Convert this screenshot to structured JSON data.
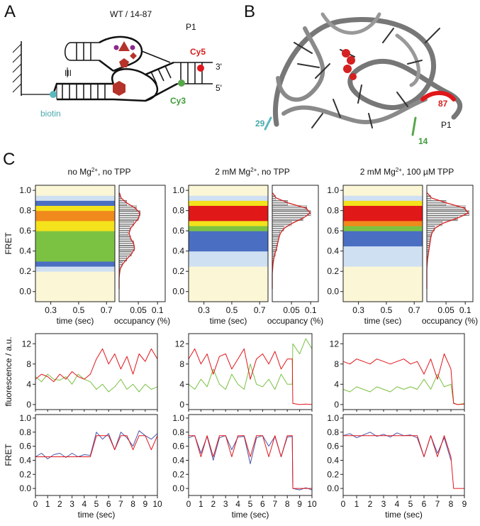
{
  "panel_labels": [
    "A",
    "B",
    "C"
  ],
  "diagram_a": {
    "title": "WT / 14-87",
    "p1": "P1",
    "cy5": "Cy5",
    "three_prime": "3'",
    "five_prime": "5'",
    "cy3": "Cy3",
    "biotin": "biotin",
    "tertiary": "III"
  },
  "structure_b": {
    "res87": "87",
    "res29": "29",
    "res14": "14",
    "p1": "P1"
  },
  "chart_data": [
    {
      "type": "heatmap",
      "title_parts": [
        {
          "text": "no Mg"
        },
        {
          "text": "2+",
          "superscript": true
        },
        {
          "text": ", no TPP"
        }
      ],
      "y_bins": [
        0,
        0.05,
        0.1,
        0.15,
        0.2,
        0.25,
        0.3,
        0.35,
        0.4,
        0.45,
        0.5,
        0.55,
        0.6,
        0.65,
        0.7,
        0.75,
        0.8,
        0.85,
        0.9,
        0.95,
        1.0
      ],
      "values": [
        0,
        0,
        0,
        0,
        0.1,
        0.25,
        0.45,
        0.55,
        0.5,
        0.45,
        0.5,
        0.55,
        0.6,
        0.65,
        0.75,
        0.85,
        0.7,
        0.3,
        0.1,
        0
      ],
      "colormap": [
        "#fbf6d6",
        "#cfe0f2",
        "#4a6fc2",
        "#7cc242",
        "#f4e21c",
        "#f08a1c",
        "#e01818"
      ],
      "xlim": [
        0.19,
        0.76
      ],
      "xticks": [
        0.3,
        0.5,
        0.7
      ],
      "ylim": [
        -0.1,
        1.05
      ],
      "yticks": [
        {
          "value": 0,
          "label": "0.0"
        },
        0.2,
        0.4,
        0.6,
        0.8,
        {
          "value": 1,
          "label": "1.0"
        }
      ],
      "xlabel": "time (sec)",
      "ylabel": "FRET"
    },
    {
      "type": "heatmap",
      "title_parts": [
        {
          "text": "2 mM Mg"
        },
        {
          "text": "2+",
          "superscript": true
        },
        {
          "text": ", no TPP"
        }
      ],
      "y_bins": [
        0,
        0.05,
        0.1,
        0.15,
        0.2,
        0.25,
        0.3,
        0.35,
        0.4,
        0.45,
        0.5,
        0.55,
        0.6,
        0.65,
        0.7,
        0.75,
        0.8,
        0.85,
        0.9,
        0.95,
        1.0
      ],
      "values": [
        0,
        0,
        0,
        0,
        0.05,
        0.1,
        0.15,
        0.2,
        0.25,
        0.25,
        0.3,
        0.35,
        0.45,
        0.7,
        1,
        1,
        0.95,
        0.6,
        0.15,
        0
      ],
      "colormap": [
        "#fbf6d6",
        "#cfe0f2",
        "#4a6fc2",
        "#7cc242",
        "#f4e21c",
        "#f08a1c",
        "#e01818"
      ],
      "xlim": [
        0.19,
        0.76
      ],
      "xticks": [
        0.3,
        0.5,
        0.7
      ],
      "ylim": [
        -0.1,
        1.05
      ],
      "yticks": [
        {
          "value": 0,
          "label": "0.0"
        },
        0.2,
        0.4,
        0.6,
        0.8,
        {
          "value": 1,
          "label": "1.0"
        }
      ],
      "xlabel": "time (sec)"
    },
    {
      "type": "heatmap",
      "title_parts": [
        {
          "text": "2 mM Mg"
        },
        {
          "text": "2+",
          "superscript": true
        },
        {
          "text": ", 100 µM TPP"
        }
      ],
      "y_bins": [
        0,
        0.05,
        0.1,
        0.15,
        0.2,
        0.25,
        0.3,
        0.35,
        0.4,
        0.45,
        0.5,
        0.55,
        0.6,
        0.65,
        0.7,
        0.75,
        0.8,
        0.85,
        0.9,
        0.95,
        1.0
      ],
      "values": [
        0,
        0,
        0,
        0,
        0.05,
        0.1,
        0.12,
        0.18,
        0.22,
        0.25,
        0.3,
        0.35,
        0.5,
        0.75,
        1,
        1,
        1,
        0.65,
        0.15,
        0
      ],
      "colormap": [
        "#fbf6d6",
        "#cfe0f2",
        "#4a6fc2",
        "#7cc242",
        "#f4e21c",
        "#f08a1c",
        "#e01818"
      ],
      "xlim": [
        0.19,
        0.76
      ],
      "xticks": [
        0.3,
        0.5,
        0.7
      ],
      "ylim": [
        -0.1,
        1.05
      ],
      "yticks": [
        {
          "value": 0,
          "label": "0.0"
        },
        0.2,
        0.4,
        0.6,
        0.8,
        {
          "value": 1,
          "label": "1.0"
        }
      ],
      "xlabel": "time (sec)"
    },
    {
      "type": "histogram",
      "orientation": "horizontal",
      "bins": [
        0,
        0.05,
        0.1,
        0.15,
        0.2,
        0.25,
        0.3,
        0.35,
        0.4,
        0.45,
        0.5,
        0.55,
        0.6,
        0.65,
        0.7,
        0.75,
        0.8,
        0.85,
        0.9,
        0.95,
        1.0
      ],
      "values": [
        0,
        0,
        0,
        0,
        0.002,
        0.008,
        0.02,
        0.032,
        0.04,
        0.038,
        0.03,
        0.024,
        0.028,
        0.038,
        0.05,
        0.055,
        0.045,
        0.02,
        0.004,
        0
      ],
      "fit": [
        0,
        0,
        0,
        0.001,
        0.003,
        0.01,
        0.021,
        0.033,
        0.04,
        0.038,
        0.03,
        0.026,
        0.03,
        0.04,
        0.051,
        0.054,
        0.042,
        0.02,
        0.005,
        0.001
      ],
      "color": "#888888",
      "fit_color": "#d42020",
      "xlim": [
        0,
        0.12
      ],
      "xticks": [
        0.05,
        0.1
      ],
      "ylim": [
        -0.1,
        1.05
      ],
      "xlabel": "occupancy (%)"
    },
    {
      "type": "histogram",
      "orientation": "horizontal",
      "bins": [
        0,
        0.05,
        0.1,
        0.15,
        0.2,
        0.25,
        0.3,
        0.35,
        0.4,
        0.45,
        0.5,
        0.55,
        0.6,
        0.65,
        0.7,
        0.75,
        0.8,
        0.85,
        0.9,
        0.95,
        1.0
      ],
      "values": [
        0,
        0,
        0,
        0,
        0,
        0.001,
        0.004,
        0.008,
        0.012,
        0.014,
        0.016,
        0.02,
        0.03,
        0.05,
        0.08,
        0.1,
        0.09,
        0.04,
        0.008,
        0
      ],
      "fit": [
        0,
        0,
        0,
        0,
        0.001,
        0.002,
        0.004,
        0.007,
        0.011,
        0.014,
        0.017,
        0.021,
        0.031,
        0.052,
        0.08,
        0.099,
        0.088,
        0.042,
        0.01,
        0.001
      ],
      "color": "#888888",
      "fit_color": "#d42020",
      "xlim": [
        0,
        0.12
      ],
      "xticks": [
        0.05,
        0.1
      ],
      "ylim": [
        -0.1,
        1.05
      ],
      "xlabel": "occupancy (%)"
    },
    {
      "type": "histogram",
      "orientation": "horizontal",
      "bins": [
        0,
        0.05,
        0.1,
        0.15,
        0.2,
        0.25,
        0.3,
        0.35,
        0.4,
        0.45,
        0.5,
        0.55,
        0.6,
        0.65,
        0.7,
        0.75,
        0.8,
        0.85,
        0.9,
        0.95,
        1.0
      ],
      "values": [
        0,
        0,
        0,
        0,
        0,
        0,
        0.002,
        0.004,
        0.006,
        0.008,
        0.01,
        0.012,
        0.02,
        0.04,
        0.08,
        0.11,
        0.1,
        0.05,
        0.01,
        0
      ],
      "fit": [
        0,
        0,
        0,
        0,
        0,
        0.001,
        0.002,
        0.004,
        0.006,
        0.008,
        0.01,
        0.013,
        0.021,
        0.042,
        0.079,
        0.108,
        0.098,
        0.052,
        0.012,
        0.001
      ],
      "color": "#888888",
      "fit_color": "#d42020",
      "xlim": [
        0,
        0.12
      ],
      "xticks": [
        0.05,
        0.1
      ],
      "ylim": [
        -0.1,
        1.05
      ],
      "xlabel": "occupancy (%)"
    },
    {
      "type": "line",
      "ylabel": "fluorescence / a.u.",
      "x": [
        0,
        0.5,
        1,
        1.5,
        2,
        2.5,
        3,
        3.5,
        4,
        4.5,
        5,
        5.5,
        6,
        6.5,
        7,
        7.5,
        8,
        8.5,
        9,
        9.5,
        10
      ],
      "series": [
        {
          "color": "#7ac143",
          "values": [
            5.5,
            4.5,
            6,
            5,
            4.8,
            5.5,
            4,
            6,
            5,
            4.5,
            3,
            4,
            2.5,
            3.5,
            5,
            3,
            4,
            2.5,
            4,
            3,
            3.5
          ]
        },
        {
          "color": "#e0161b",
          "values": [
            5,
            6,
            5.5,
            4.5,
            6,
            5,
            6.5,
            5.5,
            5,
            6,
            9,
            11,
            8,
            10,
            7,
            9.5,
            6,
            10,
            8.5,
            11,
            9
          ]
        }
      ],
      "xlim": [
        0,
        10
      ],
      "xticks": [
        0,
        1,
        2,
        3,
        4,
        5,
        6,
        7,
        8,
        9,
        10
      ],
      "ylim": [
        -1,
        14
      ],
      "yticks": [
        0,
        4,
        8,
        12
      ]
    },
    {
      "type": "line",
      "x": [
        0,
        0.5,
        1,
        1.5,
        2,
        2.5,
        3,
        3.5,
        4,
        4.5,
        5,
        5.5,
        6,
        6.5,
        7,
        7.5,
        8,
        8.4,
        8.45,
        9,
        9.5,
        10
      ],
      "series": [
        {
          "color": "#7ac143",
          "values": [
            4,
            3,
            5,
            3.5,
            7,
            4,
            3,
            6,
            4,
            3,
            8,
            4,
            3.5,
            5,
            3,
            6,
            4,
            4,
            12,
            10,
            13,
            11
          ]
        },
        {
          "color": "#e0161b",
          "values": [
            9,
            11,
            8,
            10,
            6,
            9.5,
            10,
            7,
            9,
            11,
            5,
            9,
            10,
            8,
            10.5,
            7,
            9,
            9,
            0.2,
            0,
            0.1,
            0
          ]
        }
      ],
      "xlim": [
        0,
        10
      ],
      "xticks": [
        0,
        1,
        2,
        3,
        4,
        5,
        6,
        7,
        8,
        9,
        10
      ],
      "ylim": [
        -1,
        14
      ],
      "yticks": [
        0,
        4,
        8,
        12
      ]
    },
    {
      "type": "line",
      "x": [
        0,
        0.5,
        1,
        1.5,
        2,
        2.5,
        3,
        3.5,
        4,
        4.5,
        5,
        5.5,
        6,
        6.5,
        7,
        7.5,
        8,
        8.2,
        8.5,
        9
      ],
      "series": [
        {
          "color": "#7ac143",
          "values": [
            3,
            2.5,
            3.5,
            3,
            2.5,
            3.5,
            3,
            2.5,
            3.5,
            3,
            3.5,
            3,
            5,
            3,
            6,
            3.5,
            4,
            0.3,
            0,
            0.2
          ]
        },
        {
          "color": "#e0161b",
          "values": [
            8.5,
            8,
            9,
            8.5,
            8,
            9,
            8.5,
            8,
            8.5,
            9,
            8,
            8.5,
            6,
            9,
            5,
            10,
            7,
            0.2,
            0,
            0.1
          ]
        }
      ],
      "xlim": [
        0,
        9
      ],
      "xticks": [
        0,
        1,
        2,
        3,
        4,
        5,
        6,
        7,
        8,
        9
      ],
      "ylim": [
        -1,
        14
      ],
      "yticks": [
        0,
        4,
        8,
        12
      ]
    },
    {
      "type": "line",
      "ylabel": "FRET",
      "xlabel": "time (sec)",
      "x": [
        0,
        0.5,
        1,
        1.5,
        2,
        2.5,
        3,
        3.5,
        4,
        4.5,
        5,
        5.5,
        6,
        6.5,
        7,
        7.5,
        8,
        8.5,
        9,
        9.5,
        10
      ],
      "series": [
        {
          "color": "#4a55a8",
          "values": [
            0.45,
            0.5,
            0.42,
            0.48,
            0.5,
            0.44,
            0.5,
            0.45,
            0.48,
            0.47,
            0.8,
            0.7,
            0.78,
            0.55,
            0.8,
            0.72,
            0.6,
            0.82,
            0.75,
            0.7,
            0.78
          ]
        },
        {
          "color": "#e0161b",
          "values": [
            0.45,
            0.45,
            0.45,
            0.45,
            0.45,
            0.45,
            0.45,
            0.45,
            0.45,
            0.45,
            0.75,
            0.75,
            0.75,
            0.55,
            0.75,
            0.75,
            0.55,
            0.75,
            0.75,
            0.55,
            0.75
          ]
        }
      ],
      "xlim": [
        0,
        10
      ],
      "xticks": [
        0,
        1,
        2,
        3,
        4,
        5,
        6,
        7,
        8,
        9,
        10
      ],
      "ylim": [
        -0.1,
        1.05
      ],
      "yticks": [
        {
          "value": 0,
          "label": "0.0"
        },
        0.2,
        0.4,
        0.6,
        0.8,
        {
          "value": 1,
          "label": "1.0"
        }
      ]
    },
    {
      "type": "line",
      "xlabel": "time (sec)",
      "x": [
        0,
        0.5,
        1,
        1.5,
        2,
        2.5,
        3,
        3.5,
        4,
        4.5,
        5,
        5.5,
        6,
        6.5,
        7,
        7.5,
        8,
        8.4,
        8.45,
        9,
        9.5,
        10
      ],
      "series": [
        {
          "color": "#4a55a8",
          "values": [
            0.72,
            0.75,
            0.5,
            0.74,
            0.4,
            0.72,
            0.75,
            0.55,
            0.73,
            0.74,
            0.35,
            0.72,
            0.75,
            0.6,
            0.74,
            0.45,
            0.73,
            0.74,
            0.0,
            -0.02,
            0.01,
            -0.02
          ]
        },
        {
          "color": "#e0161b",
          "values": [
            0.75,
            0.75,
            0.45,
            0.75,
            0.45,
            0.75,
            0.75,
            0.45,
            0.75,
            0.75,
            0.45,
            0.75,
            0.75,
            0.45,
            0.75,
            0.45,
            0.75,
            0.75,
            0,
            0,
            0,
            0
          ]
        }
      ],
      "xlim": [
        0,
        10
      ],
      "xticks": [
        0,
        1,
        2,
        3,
        4,
        5,
        6,
        7,
        8,
        9,
        10
      ],
      "ylim": [
        -0.1,
        1.05
      ],
      "yticks": [
        {
          "value": 0,
          "label": "0.0"
        },
        0.2,
        0.4,
        0.6,
        0.8,
        {
          "value": 1,
          "label": "1.0"
        }
      ]
    },
    {
      "type": "line",
      "xlabel": "time (sec)",
      "x": [
        0,
        0.5,
        1,
        1.5,
        2,
        2.5,
        3,
        3.5,
        4,
        4.5,
        5,
        5.5,
        6,
        6.5,
        7,
        7.5,
        8,
        8.2,
        8.5,
        9
      ],
      "series": [
        {
          "color": "#4a55a8",
          "values": [
            0.75,
            0.78,
            0.72,
            0.76,
            0.8,
            0.74,
            0.77,
            0.73,
            0.79,
            0.75,
            0.76,
            0.72,
            0.45,
            0.75,
            0.5,
            0.72,
            0.4,
            null,
            null,
            null
          ]
        },
        {
          "color": "#e0161b",
          "values": [
            0.75,
            0.75,
            0.75,
            0.75,
            0.75,
            0.75,
            0.75,
            0.75,
            0.75,
            0.75,
            0.75,
            0.75,
            0.45,
            0.75,
            0.45,
            0.75,
            0.45,
            0,
            0,
            0
          ]
        }
      ],
      "xlim": [
        0,
        9
      ],
      "xticks": [
        0,
        1,
        2,
        3,
        4,
        5,
        6,
        7,
        8,
        9
      ],
      "ylim": [
        -0.1,
        1.05
      ],
      "yticks": [
        {
          "value": 0,
          "label": "0.0"
        },
        0.2,
        0.4,
        0.6,
        0.8,
        {
          "value": 1,
          "label": "1.0"
        }
      ]
    }
  ]
}
